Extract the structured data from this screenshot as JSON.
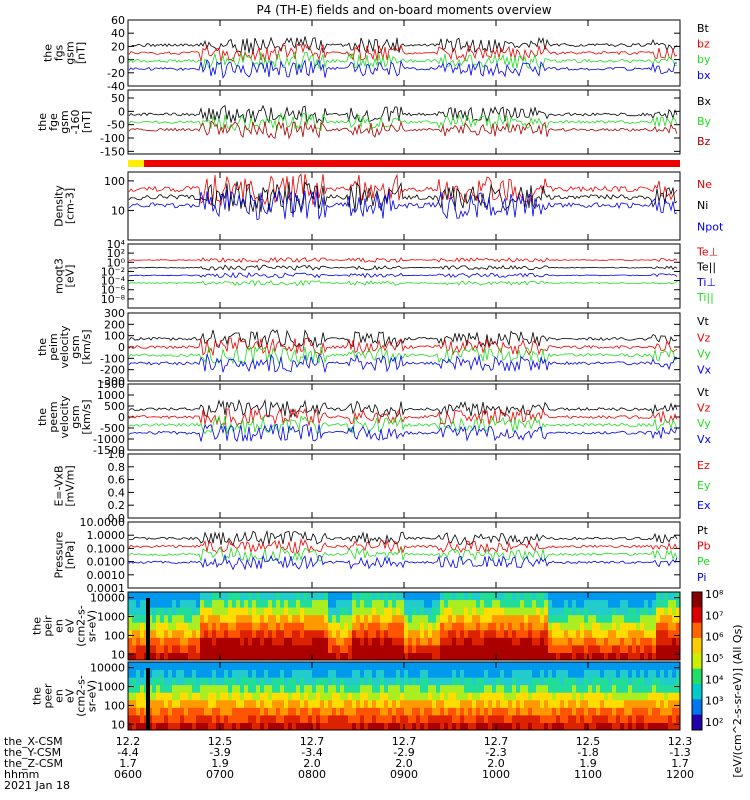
{
  "title": "P4 (TH-E) fields and on-board moments overview",
  "colors": {
    "black": "#000000",
    "red": "#ee0000",
    "green": "#22dd22",
    "blue": "#0000ee",
    "darkred": "#aa0000",
    "yellow": "#ffee00"
  },
  "chart_data": {
    "type": "line",
    "time_ticks": [
      "0600",
      "0700",
      "0800",
      "0900",
      "1000",
      "1100",
      "1200"
    ],
    "ephemeris_rows": [
      {
        "label": "the_X-CSM",
        "values": [
          "12.2",
          "12.5",
          "12.7",
          "12.7",
          "12.7",
          "12.5",
          "12.3"
        ]
      },
      {
        "label": "the_Y-CSM",
        "values": [
          "-4.4",
          "-3.9",
          "-3.4",
          "-2.9",
          "-2.3",
          "-1.8",
          "-1.3"
        ]
      },
      {
        "label": "the_Z-CSM",
        "values": [
          "1.7",
          "1.9",
          "2.0",
          "2.0",
          "2.0",
          "1.9",
          "1.7"
        ]
      },
      {
        "label": "hhmm",
        "values": [
          "0600",
          "0700",
          "0800",
          "0900",
          "1000",
          "1100",
          "1200"
        ]
      }
    ],
    "date": "2021 Jan 18",
    "mode_bar": [
      "yellow",
      "red"
    ],
    "panels": [
      {
        "id": "fgs",
        "ylabel": [
          "the",
          "fgs",
          "gsm",
          "[nT]"
        ],
        "yscale": "linear",
        "ylim": [
          -40,
          60
        ],
        "ticks": [
          "60",
          "40",
          "20",
          "0",
          "-20",
          "-40"
        ],
        "tick_values": [
          60,
          40,
          20,
          0,
          -20,
          -40
        ],
        "series": [
          {
            "name": "Bt",
            "color": "#000000"
          },
          {
            "name": "bz",
            "color": "#ee0000"
          },
          {
            "name": "by",
            "color": "#22dd22"
          },
          {
            "name": "bx",
            "color": "#0000ee"
          }
        ]
      },
      {
        "id": "fge",
        "ylabel": [
          "the",
          "fge",
          "gsm",
          "-160",
          "[nT]"
        ],
        "yscale": "linear",
        "ylim": [
          -160,
          80
        ],
        "ticks": [
          "50",
          "0",
          "-50",
          "-100",
          "-150"
        ],
        "tick_values": [
          50,
          0,
          -50,
          -100,
          -150
        ],
        "series": [
          {
            "name": "Bx",
            "color": "#000000"
          },
          {
            "name": "By",
            "color": "#22dd22"
          },
          {
            "name": "Bz",
            "color": "#aa0000"
          }
        ]
      },
      {
        "id": "density",
        "ylabel": [
          "Density",
          "[cm-3]"
        ],
        "yscale": "log",
        "ylim": [
          1,
          200
        ],
        "ticks": [
          "100",
          "10"
        ],
        "tick_values": [
          100,
          10
        ],
        "series": [
          {
            "name": "Ne",
            "color": "#ee0000"
          },
          {
            "name": "Ni",
            "color": "#000000"
          },
          {
            "name": "Npot",
            "color": "#0000ee"
          }
        ]
      },
      {
        "id": "temp",
        "ylabel": [
          "moqt3",
          "[eV]"
        ],
        "yscale": "log",
        "ylim": [
          1e-10,
          10000.0
        ],
        "ticks": [
          "10⁴",
          "10²",
          "10⁰",
          "10⁻²",
          "10⁻⁴",
          "10⁻⁶",
          "10⁻⁸"
        ],
        "tick_values": [
          10000.0,
          100.0,
          1,
          0.01,
          0.0001,
          1e-06,
          1e-08
        ],
        "series": [
          {
            "name": "Te⊥",
            "color": "#ee0000"
          },
          {
            "name": "Te||",
            "color": "#000000"
          },
          {
            "name": "Ti⊥",
            "color": "#0000ee"
          },
          {
            "name": "Ti||",
            "color": "#22dd22"
          }
        ]
      },
      {
        "id": "peim",
        "ylabel": [
          "the",
          "peim",
          "velocity",
          "gsm",
          "[km/s]"
        ],
        "yscale": "linear",
        "ylim": [
          -300,
          300
        ],
        "ticks": [
          "300",
          "200",
          "100",
          "0",
          "-100",
          "-200",
          "-300"
        ],
        "tick_values": [
          300,
          200,
          100,
          0,
          -100,
          -200,
          -300
        ],
        "series": [
          {
            "name": "Vt",
            "color": "#000000"
          },
          {
            "name": "Vz",
            "color": "#ee0000"
          },
          {
            "name": "Vy",
            "color": "#22dd22"
          },
          {
            "name": "Vx",
            "color": "#0000ee"
          }
        ]
      },
      {
        "id": "peem",
        "ylabel": [
          "the",
          "peem",
          "velocity",
          "gsm",
          "[km/s]"
        ],
        "yscale": "linear",
        "ylim": [
          -1500,
          1500
        ],
        "ticks": [
          "1500",
          "1000",
          "500",
          "0",
          "-500",
          "-1000",
          "-1500"
        ],
        "tick_values": [
          1500,
          1000,
          500,
          0,
          -500,
          -1000,
          -1500
        ],
        "series": [
          {
            "name": "Vt",
            "color": "#000000"
          },
          {
            "name": "Vz",
            "color": "#ee0000"
          },
          {
            "name": "Vy",
            "color": "#22dd22"
          },
          {
            "name": "Vx",
            "color": "#0000ee"
          }
        ]
      },
      {
        "id": "efield",
        "ylabel": [
          "E=-VxB",
          "[mV/m]"
        ],
        "yscale": "linear",
        "ylim": [
          0,
          1
        ],
        "ticks": [
          "1.0",
          "0.8",
          "0.6",
          "0.4",
          "0.2",
          "0.0"
        ],
        "tick_values": [
          1,
          0.8,
          0.6,
          0.4,
          0.2,
          0
        ],
        "series": [
          {
            "name": "Ez",
            "color": "#ee0000"
          },
          {
            "name": "Ey",
            "color": "#22dd22"
          },
          {
            "name": "Ex",
            "color": "#0000ee"
          }
        ]
      },
      {
        "id": "pressure",
        "ylabel": [
          "Pressure",
          "[nPa]"
        ],
        "yscale": "log",
        "ylim": [
          0.0001,
          10
        ],
        "ticks": [
          "10.0000",
          "1.0000",
          "0.1000",
          "0.0100",
          "0.0010",
          "0.0001"
        ],
        "tick_values": [
          10,
          1,
          0.1,
          0.01,
          0.001,
          0.0001
        ],
        "series": [
          {
            "name": "Pt",
            "color": "#000000"
          },
          {
            "name": "Pb",
            "color": "#ee0000"
          },
          {
            "name": "Pe",
            "color": "#22dd22"
          },
          {
            "name": "Pi",
            "color": "#0000ee"
          }
        ]
      },
      {
        "id": "peir",
        "ylabel": [
          "the",
          "peir",
          "en",
          "eV",
          "(cm2-s-",
          "sr-eV)"
        ],
        "yscale": "log",
        "ylim": [
          5,
          20000
        ],
        "ticks": [
          "10000",
          "1000",
          "100",
          "10"
        ],
        "tick_values": [
          10000,
          1000,
          100,
          10
        ],
        "spectrogram": true
      },
      {
        "id": "peer",
        "ylabel": [
          "the",
          "peer",
          "en",
          "eV",
          "(cm2-s-",
          "sr-eV)"
        ],
        "yscale": "log",
        "ylim": [
          5,
          20000
        ],
        "ticks": [
          "10000",
          "1000",
          "100",
          "10"
        ],
        "tick_values": [
          10000,
          1000,
          100,
          10
        ],
        "spectrogram": true
      }
    ],
    "colorbar": {
      "ticks": [
        "10⁸",
        "10⁷",
        "10⁶",
        "10⁵",
        "10⁴",
        "10³",
        "10²"
      ],
      "label": "[eV/(cm^2-s-sr-eV)] (All Qs)"
    }
  }
}
